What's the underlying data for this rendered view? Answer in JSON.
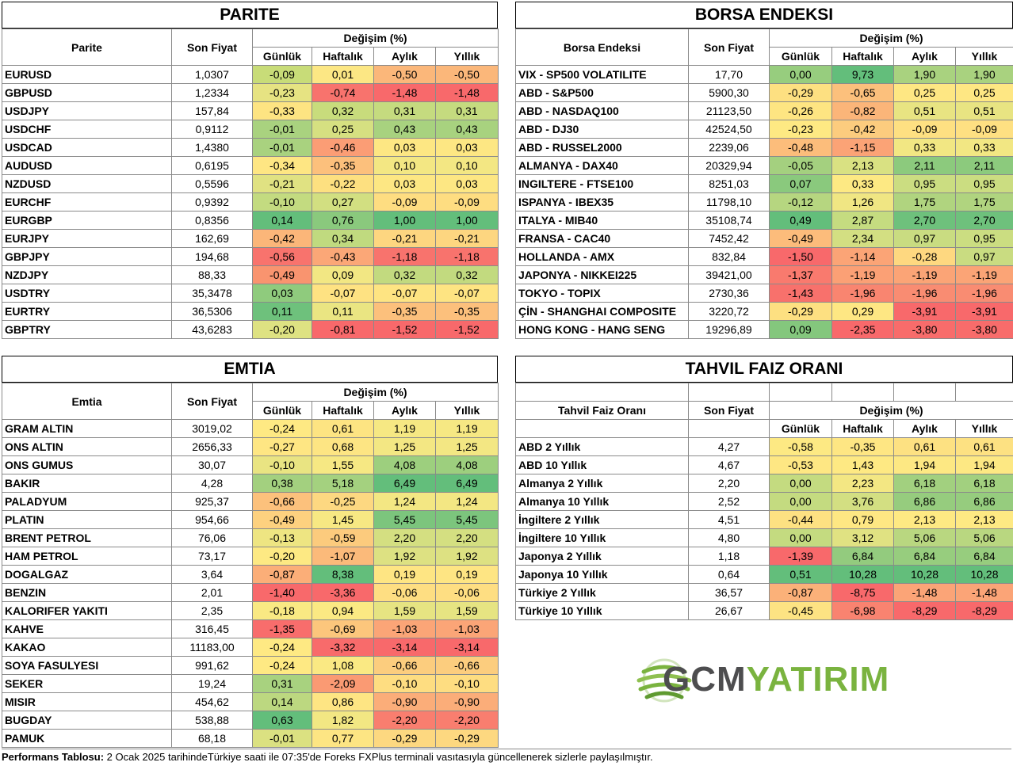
{
  "parite": {
    "title": "PARITE",
    "col_name": "Parite",
    "col_price": "Son Fiyat",
    "col_change": "Değişim (%)",
    "periods": [
      "Günlük",
      "Haftalık",
      "Aylık",
      "Yıllık"
    ],
    "rows": [
      {
        "name": "EURUSD",
        "price": "1,0307",
        "vals": [
          "-0,09",
          "0,01",
          "-0,50",
          "-0,50"
        ],
        "colors": [
          "#c8dc78",
          "#fce784",
          "#fbb77a",
          "#fbb77a"
        ]
      },
      {
        "name": "GBPUSD",
        "price": "1,2334",
        "vals": [
          "-0,23",
          "-0,74",
          "-1,48",
          "-1,48"
        ],
        "colors": [
          "#e6e382",
          "#f8736d",
          "#f8696b",
          "#f8696b"
        ]
      },
      {
        "name": "USDJPY",
        "price": "157,84",
        "vals": [
          "-0,33",
          "0,32",
          "0,31",
          "0,31"
        ],
        "colors": [
          "#fde482",
          "#c8dc7c",
          "#c5db7f",
          "#c5db7f"
        ]
      },
      {
        "name": "USDCHF",
        "price": "0,9112",
        "vals": [
          "-0,01",
          "0,25",
          "0,43",
          "0,43"
        ],
        "colors": [
          "#a9d27f",
          "#d6e081",
          "#a8d27f",
          "#a8d27f"
        ]
      },
      {
        "name": "USDCAD",
        "price": "1,4380",
        "vals": [
          "-0,01",
          "-0,46",
          "0,03",
          "0,03"
        ],
        "colors": [
          "#a9d27f",
          "#fb9d75",
          "#fde783",
          "#fde783"
        ]
      },
      {
        "name": "AUDUSD",
        "price": "0,6195",
        "vals": [
          "-0,34",
          "-0,35",
          "0,10",
          "0,10"
        ],
        "colors": [
          "#fee683",
          "#fcc07c",
          "#f3e783",
          "#f3e783"
        ]
      },
      {
        "name": "NZDUSD",
        "price": "0,5596",
        "vals": [
          "-0,21",
          "-0,22",
          "0,03",
          "0,03"
        ],
        "colors": [
          "#e0e282",
          "#fde080",
          "#fde783",
          "#fde783"
        ]
      },
      {
        "name": "EURCHF",
        "price": "0,9392",
        "vals": [
          "-0,10",
          "0,27",
          "-0,09",
          "-0,09"
        ],
        "colors": [
          "#c3db80",
          "#d2df81",
          "#fedd81",
          "#fedd81"
        ]
      },
      {
        "name": "EURGBP",
        "price": "0,8356",
        "vals": [
          "0,14",
          "0,76",
          "1,00",
          "1,00"
        ],
        "colors": [
          "#63be7b",
          "#8ac97d",
          "#63be7b",
          "#63be7b"
        ]
      },
      {
        "name": "EURJPY",
        "price": "162,69",
        "vals": [
          "-0,42",
          "0,34",
          "-0,21",
          "-0,21"
        ],
        "colors": [
          "#fbb679",
          "#c0da7f",
          "#fdd680",
          "#fdd680"
        ]
      },
      {
        "name": "GBPJPY",
        "price": "194,68",
        "vals": [
          "-0,56",
          "-0,43",
          "-1,18",
          "-1,18"
        ],
        "colors": [
          "#f8736d",
          "#fba777",
          "#f8736d",
          "#f8736d"
        ]
      },
      {
        "name": "NZDJPY",
        "price": "88,33",
        "vals": [
          "-0,49",
          "0,09",
          "0,32",
          "0,32"
        ],
        "colors": [
          "#f9946f",
          "#f2e783",
          "#c2da7f",
          "#c2da7f"
        ]
      },
      {
        "name": "USDTRY",
        "price": "35,3478",
        "vals": [
          "0,03",
          "-0,07",
          "-0,07",
          "-0,07"
        ],
        "colors": [
          "#8fcb7d",
          "#fee282",
          "#fee482",
          "#fee482"
        ]
      },
      {
        "name": "EURTRY",
        "price": "36,5306",
        "vals": [
          "0,11",
          "0,11",
          "-0,35",
          "-0,35"
        ],
        "colors": [
          "#6ec17c",
          "#eae582",
          "#fcc07c",
          "#fcc07c"
        ]
      },
      {
        "name": "GBPTRY",
        "price": "43,6283",
        "vals": [
          "-0,20",
          "-0,81",
          "-1,52",
          "-1,52"
        ],
        "colors": [
          "#dee282",
          "#f8696b",
          "#f8696b",
          "#f8696b"
        ]
      }
    ]
  },
  "borsa": {
    "title": "BORSA ENDEKSI",
    "col_name": "Borsa Endeksi",
    "col_price": "Son Fiyat",
    "col_change": "Değişim (%)",
    "periods": [
      "Günlük",
      "Haftalık",
      "Aylık",
      "Yıllık"
    ],
    "rows": [
      {
        "name": "VIX  - SP500 VOLATILITE",
        "price": "17,70",
        "vals": [
          "0,00",
          "9,73",
          "1,90",
          "1,90"
        ],
        "colors": [
          "#97cd7e",
          "#63be7b",
          "#a9d27f",
          "#a9d27f"
        ]
      },
      {
        "name": "ABD - S&P500",
        "price": "5900,30",
        "vals": [
          "-0,29",
          "-0,65",
          "0,25",
          "0,25"
        ],
        "colors": [
          "#fde081",
          "#fcc07c",
          "#fee783",
          "#fee783"
        ]
      },
      {
        "name": "ABD - NASDAQ100",
        "price": "21123,50",
        "vals": [
          "-0,26",
          "-0,82",
          "0,51",
          "0,51"
        ],
        "colors": [
          "#fee582",
          "#fbb579",
          "#e8e482",
          "#e8e482"
        ]
      },
      {
        "name": "ABD - DJ30",
        "price": "42524,50",
        "vals": [
          "-0,23",
          "-0,42",
          "-0,09",
          "-0,09"
        ],
        "colors": [
          "#fee983",
          "#fccc7e",
          "#fee082",
          "#fee082"
        ]
      },
      {
        "name": "ABD - RUSSEL2000",
        "price": "2239,06",
        "vals": [
          "-0,48",
          "-1,15",
          "0,33",
          "0,33"
        ],
        "colors": [
          "#fcbd7b",
          "#fba376",
          "#f2e783",
          "#f2e783"
        ]
      },
      {
        "name": "ALMANYA - DAX40",
        "price": "20329,94",
        "vals": [
          "-0,05",
          "2,13",
          "2,11",
          "2,11"
        ],
        "colors": [
          "#a4d07f",
          "#d9e182",
          "#8cca7d",
          "#8cca7d"
        ]
      },
      {
        "name": "INGILTERE - FTSE100",
        "price": "8251,03",
        "vals": [
          "0,07",
          "0,33",
          "0,95",
          "0,95"
        ],
        "colors": [
          "#8ac97d",
          "#fde983",
          "#cbdd81",
          "#cbdd81"
        ]
      },
      {
        "name": "ISPANYA - IBEX35",
        "price": "11798,10",
        "vals": [
          "-0,12",
          "1,26",
          "1,75",
          "1,75"
        ],
        "colors": [
          "#b6d680",
          "#f0e683",
          "#b0d47f",
          "#b0d47f"
        ]
      },
      {
        "name": "ITALYA - MIB40",
        "price": "35108,74",
        "vals": [
          "0,49",
          "2,87",
          "2,70",
          "2,70"
        ],
        "colors": [
          "#63be7b",
          "#c5dc80",
          "#6ec17c",
          "#6ec17c"
        ]
      },
      {
        "name": "FRANSA - CAC40",
        "price": "7452,42",
        "vals": [
          "-0,49",
          "2,34",
          "0,97",
          "0,95"
        ],
        "colors": [
          "#fcbc7b",
          "#d3df82",
          "#c9dc81",
          "#cbdd81"
        ]
      },
      {
        "name": "HOLLANDA - AMX",
        "price": "832,84",
        "vals": [
          "-1,50",
          "-1,14",
          "-0,28",
          "0,97"
        ],
        "colors": [
          "#f8696b",
          "#fba476",
          "#fed880",
          "#c9dc81"
        ]
      },
      {
        "name": "JAPONYA - NIKKEI225",
        "price": "39421,00",
        "vals": [
          "-1,37",
          "-1,19",
          "-1,19",
          "-1,19"
        ],
        "colors": [
          "#f97a6e",
          "#fba075",
          "#fba476",
          "#fba476"
        ]
      },
      {
        "name": "TOKYO - TOPIX",
        "price": "2730,36",
        "vals": [
          "-1,43",
          "-1,96",
          "-1,96",
          "-1,96"
        ],
        "colors": [
          "#f8716c",
          "#f98570",
          "#f98c72",
          "#f98c72"
        ]
      },
      {
        "name": "ÇİN - SHANGHAI COMPOSITE",
        "price": "3220,72",
        "vals": [
          "-0,29",
          "0,29",
          "-3,91",
          "-3,91"
        ],
        "colors": [
          "#fde081",
          "#fee783",
          "#f8696b",
          "#f8696b"
        ]
      },
      {
        "name": "HONG KONG - HANG SENG",
        "price": "19296,89",
        "vals": [
          "0,09",
          "-2,35",
          "-3,80",
          "-3,80"
        ],
        "colors": [
          "#84c77d",
          "#f8696b",
          "#f86c6b",
          "#f86c6b"
        ]
      }
    ]
  },
  "emtia": {
    "title": "EMTIA",
    "col_name": "Emtia",
    "col_price": "Son Fiyat",
    "col_change": "Değişim (%)",
    "periods": [
      "Günlük",
      "Haftalık",
      "Aylık",
      "Yıllık"
    ],
    "rows": [
      {
        "name": "GRAM ALTIN",
        "price": "3019,02",
        "vals": [
          "-0,24",
          "0,61",
          "1,19",
          "1,19"
        ],
        "colors": [
          "#fee983",
          "#fde482",
          "#f6e883",
          "#f6e883"
        ]
      },
      {
        "name": "ONS ALTIN",
        "price": "2656,33",
        "vals": [
          "-0,27",
          "0,68",
          "1,25",
          "1,25"
        ],
        "colors": [
          "#fee683",
          "#fde583",
          "#f3e783",
          "#f3e783"
        ]
      },
      {
        "name": "ONS GUMUS",
        "price": "30,07",
        "vals": [
          "-0,10",
          "1,55",
          "4,08",
          "4,08"
        ],
        "colors": [
          "#e9e482",
          "#f6e883",
          "#9dcf7e",
          "#9dcf7e"
        ]
      },
      {
        "name": "BAKIR",
        "price": "4,28",
        "vals": [
          "0,38",
          "5,18",
          "6,49",
          "6,49"
        ],
        "colors": [
          "#a3d07f",
          "#a4d17f",
          "#63be7b",
          "#63be7b"
        ]
      },
      {
        "name": "PALADYUM",
        "price": "925,37",
        "vals": [
          "-0,66",
          "-0,25",
          "1,24",
          "1,24"
        ],
        "colors": [
          "#fcc17c",
          "#fdd881",
          "#f3e783",
          "#f3e783"
        ]
      },
      {
        "name": "PLATIN",
        "price": "954,66",
        "vals": [
          "-0,49",
          "1,45",
          "5,45",
          "5,45"
        ],
        "colors": [
          "#fdd17f",
          "#f7e883",
          "#7cc57d",
          "#7cc57d"
        ]
      },
      {
        "name": "BRENT PETROL",
        "price": "76,06",
        "vals": [
          "-0,13",
          "-0,59",
          "2,20",
          "2,20"
        ],
        "colors": [
          "#eee582",
          "#fccb7d",
          "#d4df81",
          "#d4df81"
        ]
      },
      {
        "name": "HAM PETROL",
        "price": "73,17",
        "vals": [
          "-0,20",
          "-1,07",
          "1,92",
          "1,92"
        ],
        "colors": [
          "#fde983",
          "#fbba7a",
          "#dde182",
          "#dde182"
        ]
      },
      {
        "name": "DOGALGAZ",
        "price": "3,64",
        "vals": [
          "-0,87",
          "8,38",
          "0,19",
          "0,19"
        ],
        "colors": [
          "#fbae78",
          "#63be7b",
          "#fee583",
          "#fee583"
        ]
      },
      {
        "name": "BENZIN",
        "price": "2,01",
        "vals": [
          "-1,40",
          "-3,36",
          "-0,06",
          "-0,06"
        ],
        "colors": [
          "#f8696b",
          "#f8696b",
          "#fede82",
          "#fede82"
        ]
      },
      {
        "name": "KALORIFER YAKITI",
        "price": "2,35",
        "vals": [
          "-0,18",
          "0,94",
          "1,59",
          "1,59"
        ],
        "colors": [
          "#f9e983",
          "#fbe983",
          "#e6e482",
          "#e6e482"
        ]
      },
      {
        "name": "KAHVE",
        "price": "316,45",
        "vals": [
          "-1,35",
          "-0,69",
          "-1,03",
          "-1,03"
        ],
        "colors": [
          "#f86d6c",
          "#fcc67c",
          "#fba577",
          "#fba577"
        ]
      },
      {
        "name": "KAKAO",
        "price": "11183,00",
        "vals": [
          "-0,24",
          "-3,32",
          "-3,14",
          "-3,14"
        ],
        "colors": [
          "#fee983",
          "#f86b6b",
          "#f8696b",
          "#f8696b"
        ]
      },
      {
        "name": "SOYA FASULYESI",
        "price": "991,62",
        "vals": [
          "-0,24",
          "1,08",
          "-0,66",
          "-0,66"
        ],
        "colors": [
          "#fee983",
          "#fae983",
          "#fccd7e",
          "#fccd7e"
        ]
      },
      {
        "name": "SEKER",
        "price": "19,24",
        "vals": [
          "0,31",
          "-2,09",
          "-0,10",
          "-0,10"
        ],
        "colors": [
          "#a8d27f",
          "#fa9a73",
          "#fedd81",
          "#fedd81"
        ]
      },
      {
        "name": "MISIR",
        "price": "454,62",
        "vals": [
          "0,14",
          "0,86",
          "-0,90",
          "-0,90"
        ],
        "colors": [
          "#bcd880",
          "#fee583",
          "#fbad79",
          "#fbad79"
        ]
      },
      {
        "name": "BUGDAY",
        "price": "538,88",
        "vals": [
          "0,63",
          "1,82",
          "-2,20",
          "-2,20"
        ],
        "colors": [
          "#63be7b",
          "#f2e783",
          "#f97e6f",
          "#f97e6f"
        ]
      },
      {
        "name": "PAMUK",
        "price": "68,18",
        "vals": [
          "-0,01",
          "0,77",
          "-0,29",
          "-0,29"
        ],
        "colors": [
          "#dbe181",
          "#fde583",
          "#fdd880",
          "#fdd880"
        ]
      }
    ]
  },
  "tahvil": {
    "title": "TAHVIL FAIZ ORANI",
    "col_name": "Tahvil Faiz Oranı",
    "col_price": "Son Fiyat",
    "col_change": "Değişim (%)",
    "periods": [
      "Günlük",
      "Haftalık",
      "Aylık",
      "Yıllık"
    ],
    "rows": [
      {
        "name": "ABD 2 Yıllık",
        "price": "4,27",
        "vals": [
          "-0,58",
          "-0,35",
          "0,61",
          "0,61"
        ],
        "colors": [
          "#fde983",
          "#fee683",
          "#fde182",
          "#fde182"
        ]
      },
      {
        "name": "ABD 10 Yıllık",
        "price": "4,67",
        "vals": [
          "-0,53",
          "1,43",
          "1,94",
          "1,94"
        ],
        "colors": [
          "#fee783",
          "#fee983",
          "#fde883",
          "#fde883"
        ]
      },
      {
        "name": "Almanya 2 Yıllık",
        "price": "2,20",
        "vals": [
          "0,00",
          "2,23",
          "6,18",
          "6,18"
        ],
        "colors": [
          "#c4db80",
          "#f3e783",
          "#a2d07f",
          "#a2d07f"
        ]
      },
      {
        "name": "Almanya 10 Yıllık",
        "price": "2,52",
        "vals": [
          "0,00",
          "3,76",
          "6,86",
          "6,86"
        ],
        "colors": [
          "#c4db80",
          "#d3df82",
          "#96cc7e",
          "#96cc7e"
        ]
      },
      {
        "name": "İngiltere 2 Yıllık",
        "price": "4,51",
        "vals": [
          "-0,44",
          "0,79",
          "2,13",
          "2,13"
        ],
        "colors": [
          "#fde182",
          "#fee783",
          "#fee983",
          "#fee983"
        ]
      },
      {
        "name": "İngiltere 10 Yıllık",
        "price": "4,80",
        "vals": [
          "0,00",
          "3,12",
          "5,06",
          "5,06"
        ],
        "colors": [
          "#c4db80",
          "#e0e282",
          "#b9d780",
          "#b9d780"
        ]
      },
      {
        "name": "Japonya 2 Yıllık",
        "price": "1,18",
        "vals": [
          "-1,39",
          "6,84",
          "6,84",
          "6,84"
        ],
        "colors": [
          "#f8696b",
          "#93cb7e",
          "#97cd7e",
          "#97cd7e"
        ]
      },
      {
        "name": "Japonya 10 Yıllık",
        "price": "0,64",
        "vals": [
          "0,51",
          "10,28",
          "10,28",
          "10,28"
        ],
        "colors": [
          "#63be7b",
          "#63be7b",
          "#63be7b",
          "#63be7b"
        ]
      },
      {
        "name": "Türkiye 2 Yıllık",
        "price": "36,57",
        "vals": [
          "-0,87",
          "-8,75",
          "-1,48",
          "-1,48"
        ],
        "colors": [
          "#fbb179",
          "#f8696b",
          "#fba477",
          "#fba477"
        ]
      },
      {
        "name": "Türkiye 10 Yıllık",
        "price": "26,67",
        "vals": [
          "-0,45",
          "-6,98",
          "-8,29",
          "-8,29"
        ],
        "colors": [
          "#fde383",
          "#f98370",
          "#f8696b",
          "#f8696b"
        ]
      }
    ]
  },
  "footer": {
    "label": "Performans Tablosu:",
    "text": " 2 Ocak 2025 tarihindeTürkiye saati ile 07:35'de Foreks FXPlus terminali vasıtasıyla güncellenerek sizlerle paylaşılmıştır."
  },
  "logo": {
    "text_gcm": "GCM",
    "text_yatirim": "YATIRIM",
    "color_gcm": "#4d4d4f",
    "color_yatirim": "#7ab33f"
  }
}
